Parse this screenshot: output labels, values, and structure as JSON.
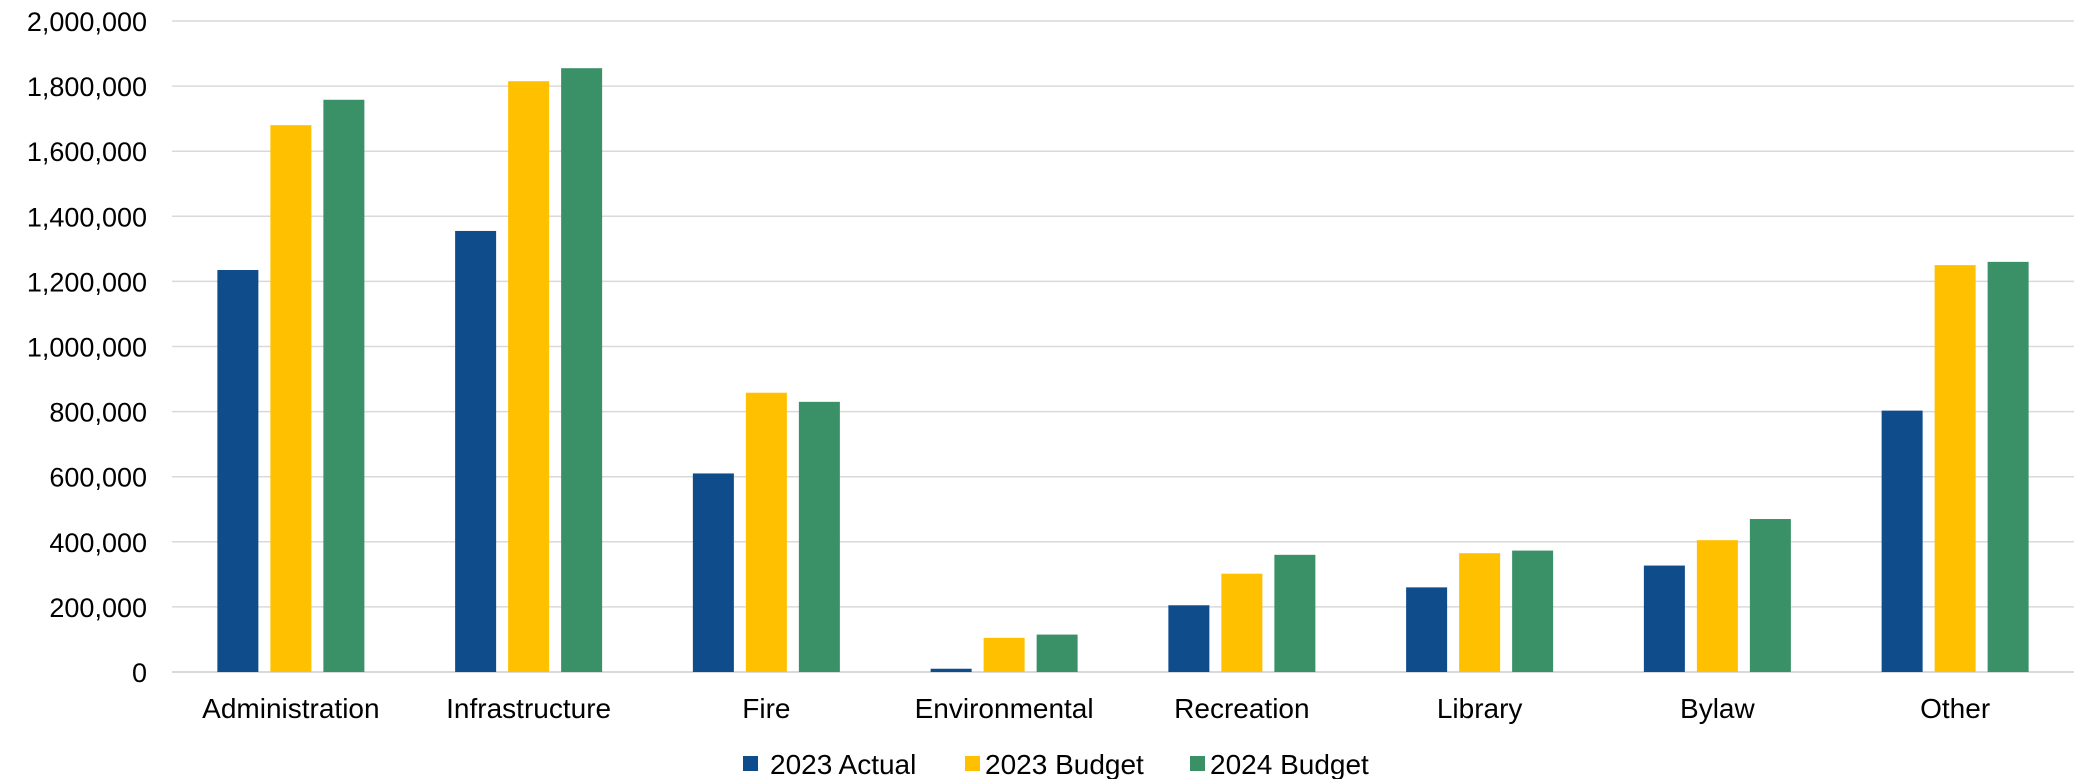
{
  "chart_data": {
    "type": "bar",
    "title": "",
    "xlabel": "",
    "ylabel": "",
    "categories": [
      "Administration",
      "Infrastructure",
      "Fire",
      "Environmental",
      "Recreation",
      "Library",
      "Bylaw",
      "Other"
    ],
    "series": [
      {
        "name": "2023 Actual",
        "color": "#0f4c8c",
        "values": [
          1235000,
          1355000,
          610000,
          10000,
          205000,
          260000,
          327000,
          803000
        ]
      },
      {
        "name": "2023 Budget",
        "color": "#ffc000",
        "values": [
          1680000,
          1815000,
          858000,
          105000,
          302000,
          365000,
          405000,
          1250000
        ]
      },
      {
        "name": "2024 Budget",
        "color": "#3b9167",
        "values": [
          1758000,
          1855000,
          830000,
          115000,
          360000,
          373000,
          470000,
          1260000
        ]
      }
    ],
    "ylim": [
      0,
      2000000
    ],
    "yticks": [
      "0",
      "200,000",
      "400,000",
      "600,000",
      "800,000",
      "1,000,000",
      "1,200,000",
      "1,400,000",
      "1,600,000",
      "1,800,000",
      "2,000,000"
    ],
    "grid": true,
    "legend_position": "bottom"
  }
}
